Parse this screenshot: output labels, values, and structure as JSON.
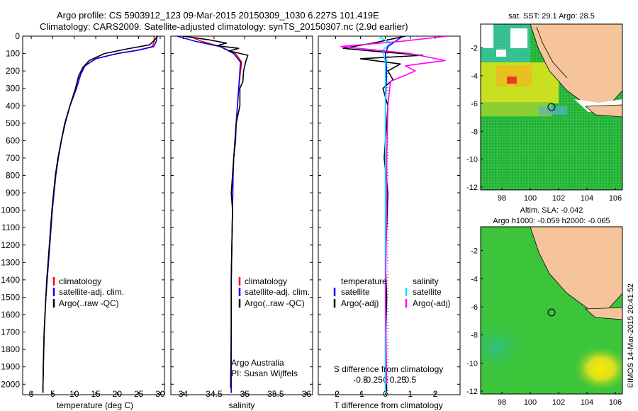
{
  "header": {
    "line1": "Argo profile: CS 5903912_123 09-Mar-2015 20150309_1030 6.227S 101.419E",
    "line2": "Climatology: CARS2009. Satellite-adjusted climatology: synTS_20150307.nc (2.9d earlier)"
  },
  "colors": {
    "climatology": "#ff0000",
    "satellite": "#0000ff",
    "argo": "#000000",
    "sat_salinity": "#00e5ff",
    "argo_salinity": "#ff00ff",
    "land": "#f6c49b"
  },
  "chart_data": [
    {
      "type": "line",
      "xlabel": "temperature (deg C)",
      "ylabel": "",
      "xlim": [
        -2,
        31
      ],
      "ylim": [
        2060,
        0
      ],
      "xticks": [
        0,
        5,
        10,
        15,
        20,
        25,
        30
      ],
      "yticks": [
        0,
        100,
        200,
        300,
        400,
        500,
        600,
        700,
        800,
        900,
        1000,
        1100,
        1200,
        1300,
        1400,
        1500,
        1600,
        1700,
        1800,
        1900,
        2000
      ],
      "legend": [
        "climatology",
        "satellite-adj. clim.",
        "Argo(..raw -QC)"
      ],
      "series": [
        {
          "name": "climatology",
          "color": "#ff0000",
          "x": [
            28.6,
            28.6,
            28.2,
            25,
            20,
            15,
            12.5,
            11.5,
            10.5,
            9,
            7.8,
            7,
            6.3,
            5.7,
            5.3,
            4.9,
            4.6,
            4.3,
            4,
            3.7,
            3.4,
            3.2,
            3,
            2.8,
            2.7
          ],
          "y": [
            0,
            30,
            60,
            80,
            100,
            130,
            170,
            220,
            300,
            400,
            500,
            600,
            700,
            800,
            900,
            1000,
            1100,
            1200,
            1300,
            1400,
            1500,
            1600,
            1700,
            1900,
            2050
          ]
        },
        {
          "name": "satellite-adj. clim.",
          "color": "#0000ff",
          "x": [
            29.3,
            29.1,
            28.5,
            25,
            20,
            15,
            12.5,
            11.5,
            10.5,
            9,
            7.8,
            7,
            6.3,
            5.7,
            5.3,
            4.9,
            4.6,
            4.3,
            4,
            3.7,
            3.4,
            3.2,
            3,
            2.8,
            2.7
          ],
          "y": [
            0,
            30,
            60,
            80,
            100,
            130,
            170,
            220,
            300,
            400,
            500,
            600,
            700,
            800,
            900,
            1000,
            1100,
            1200,
            1300,
            1400,
            1500,
            1600,
            1700,
            1900,
            2050
          ]
        },
        {
          "name": "Argo(..raw -QC)",
          "color": "#000000",
          "x": [
            29.4,
            28.8,
            27.5,
            22,
            17,
            13.5,
            12,
            11,
            10.3,
            9,
            7.9,
            7,
            6.2,
            5.6,
            5.2,
            4.8,
            4.5,
            4.2,
            3.9,
            3.6,
            3.4,
            3.2,
            3,
            2.8,
            2.7
          ],
          "y": [
            0,
            20,
            50,
            75,
            100,
            140,
            180,
            230,
            300,
            400,
            500,
            600,
            700,
            800,
            900,
            1000,
            1100,
            1200,
            1300,
            1400,
            1500,
            1600,
            1700,
            1900,
            2040
          ]
        }
      ]
    },
    {
      "type": "line",
      "xlabel": "salinity",
      "ylabel": "",
      "xlim": [
        33.8,
        36.1
      ],
      "ylim": [
        2060,
        0
      ],
      "xticks": [
        34,
        34.5,
        35,
        35.5,
        36
      ],
      "legend": [
        "climatology",
        "satellite-adj. clim.",
        "Argo(..raw -QC)"
      ],
      "annotation": [
        "Argo Australia",
        "PI: Susan Wijffels"
      ],
      "series": [
        {
          "name": "climatology",
          "color": "#ff0000",
          "x": [
            34.1,
            34.3,
            34.6,
            34.85,
            34.95,
            34.93,
            34.9,
            34.88,
            34.86,
            34.84,
            34.82,
            34.81,
            34.8,
            34.79,
            34.78,
            34.78,
            34.78
          ],
          "y": [
            0,
            30,
            60,
            100,
            150,
            200,
            300,
            400,
            500,
            600,
            700,
            800,
            1000,
            1200,
            1400,
            1700,
            2050
          ]
        },
        {
          "name": "satellite-adj. clim.",
          "color": "#0000ff",
          "x": [
            33.9,
            34.2,
            34.6,
            34.82,
            34.93,
            34.92,
            34.9,
            34.88,
            34.86,
            34.84,
            34.82,
            34.81,
            34.8,
            34.79,
            34.78,
            34.78,
            34.78
          ],
          "y": [
            0,
            30,
            60,
            100,
            150,
            200,
            300,
            400,
            500,
            600,
            700,
            800,
            1000,
            1200,
            1400,
            1700,
            2050
          ]
        },
        {
          "name": "Argo(..raw -QC)",
          "color": "#000000",
          "x": [
            34.0,
            34.4,
            34.7,
            34.55,
            34.9,
            34.75,
            35.05,
            35.02,
            34.98,
            34.97,
            34.92,
            34.92,
            34.86,
            34.85,
            34.82,
            34.8,
            34.78,
            34.8,
            34.79,
            34.78,
            34.78,
            34.77
          ],
          "y": [
            0,
            20,
            40,
            55,
            70,
            85,
            110,
            140,
            200,
            260,
            300,
            400,
            500,
            600,
            700,
            800,
            900,
            1000,
            1200,
            1400,
            1700,
            2020
          ]
        }
      ]
    },
    {
      "type": "line",
      "xlabel": "T difference from climatology",
      "title": "S difference from climatology",
      "xlim": [
        -2.7,
        3.0
      ],
      "ylim": [
        2060,
        0
      ],
      "xticks_T": [
        -2,
        -1,
        0,
        1,
        2
      ],
      "xticks_S": [
        -0.5,
        -0.25,
        0,
        0.25,
        0.5
      ],
      "legend_T": {
        "title": "temperature",
        "items": [
          "satellite",
          "Argo(-adj)"
        ]
      },
      "legend_S": {
        "title": "salinity",
        "items": [
          "satellite",
          "Argo(-adj)"
        ]
      },
      "series": [
        {
          "name": "satellite",
          "color": "#0000ff",
          "x": [
            0.7,
            0.4,
            0.1,
            0,
            0.05,
            0,
            0,
            0,
            0
          ],
          "y": [
            0,
            30,
            60,
            100,
            200,
            400,
            800,
            1400,
            2050
          ]
        },
        {
          "name": "Argo(-adj)",
          "color": "#000000",
          "x": [
            0.8,
            -0.5,
            -1.7,
            -0.2,
            1.5,
            -1.0,
            0.6,
            0.1,
            0.3,
            -0.1,
            0.1,
            0.05,
            -0.05,
            0.1,
            0.05,
            0,
            0.05,
            0,
            0.05
          ],
          "y": [
            0,
            40,
            70,
            90,
            110,
            130,
            160,
            200,
            250,
            300,
            400,
            500,
            700,
            900,
            1100,
            1300,
            1500,
            1800,
            2040
          ]
        },
        {
          "name": "satellite",
          "color": "#00e5ff",
          "x": [
            -0.3,
            0.2,
            -0.1,
            0,
            0,
            0,
            0,
            0
          ],
          "y": [
            0,
            40,
            80,
            150,
            300,
            700,
            1400,
            2050
          ]
        },
        {
          "name": "Argo(-adj)",
          "color": "#ff00ff",
          "x": [
            2.5,
            0.6,
            -1.8,
            1.0,
            2.4,
            0.8,
            1.2,
            0.2,
            0.1,
            0.05,
            0.05,
            0,
            0.05
          ],
          "y": [
            0,
            30,
            60,
            100,
            140,
            170,
            200,
            260,
            400,
            700,
            1000,
            1500,
            2000
          ]
        }
      ]
    },
    {
      "type": "heatmap",
      "title": "sat. SST: 29.1 Argo: 28.5",
      "xlim": [
        96.5,
        106.5
      ],
      "ylim": [
        -12.2,
        -0.3
      ],
      "xticks": [
        98,
        100,
        102,
        104,
        106
      ],
      "yticks": [
        -2,
        -4,
        -6,
        -8,
        -10,
        -12
      ],
      "argo_position": [
        101.419,
        -6.227
      ]
    },
    {
      "type": "heatmap",
      "title": "Altim. SLA: -0.042",
      "subtitle": "Argo h1000: -0.059 h2000: -0.065",
      "xlim": [
        96.5,
        106.5
      ],
      "ylim": [
        -12.2,
        -0.3
      ],
      "xticks": [
        98,
        100,
        102,
        104,
        106
      ],
      "yticks": [
        -2,
        -4,
        -6,
        -8,
        -10,
        -12
      ],
      "argo_position": [
        101.419,
        -6.227
      ]
    }
  ],
  "footer": {
    "stamp": "©IMOS 14-Mar-2015 20:41:52"
  }
}
